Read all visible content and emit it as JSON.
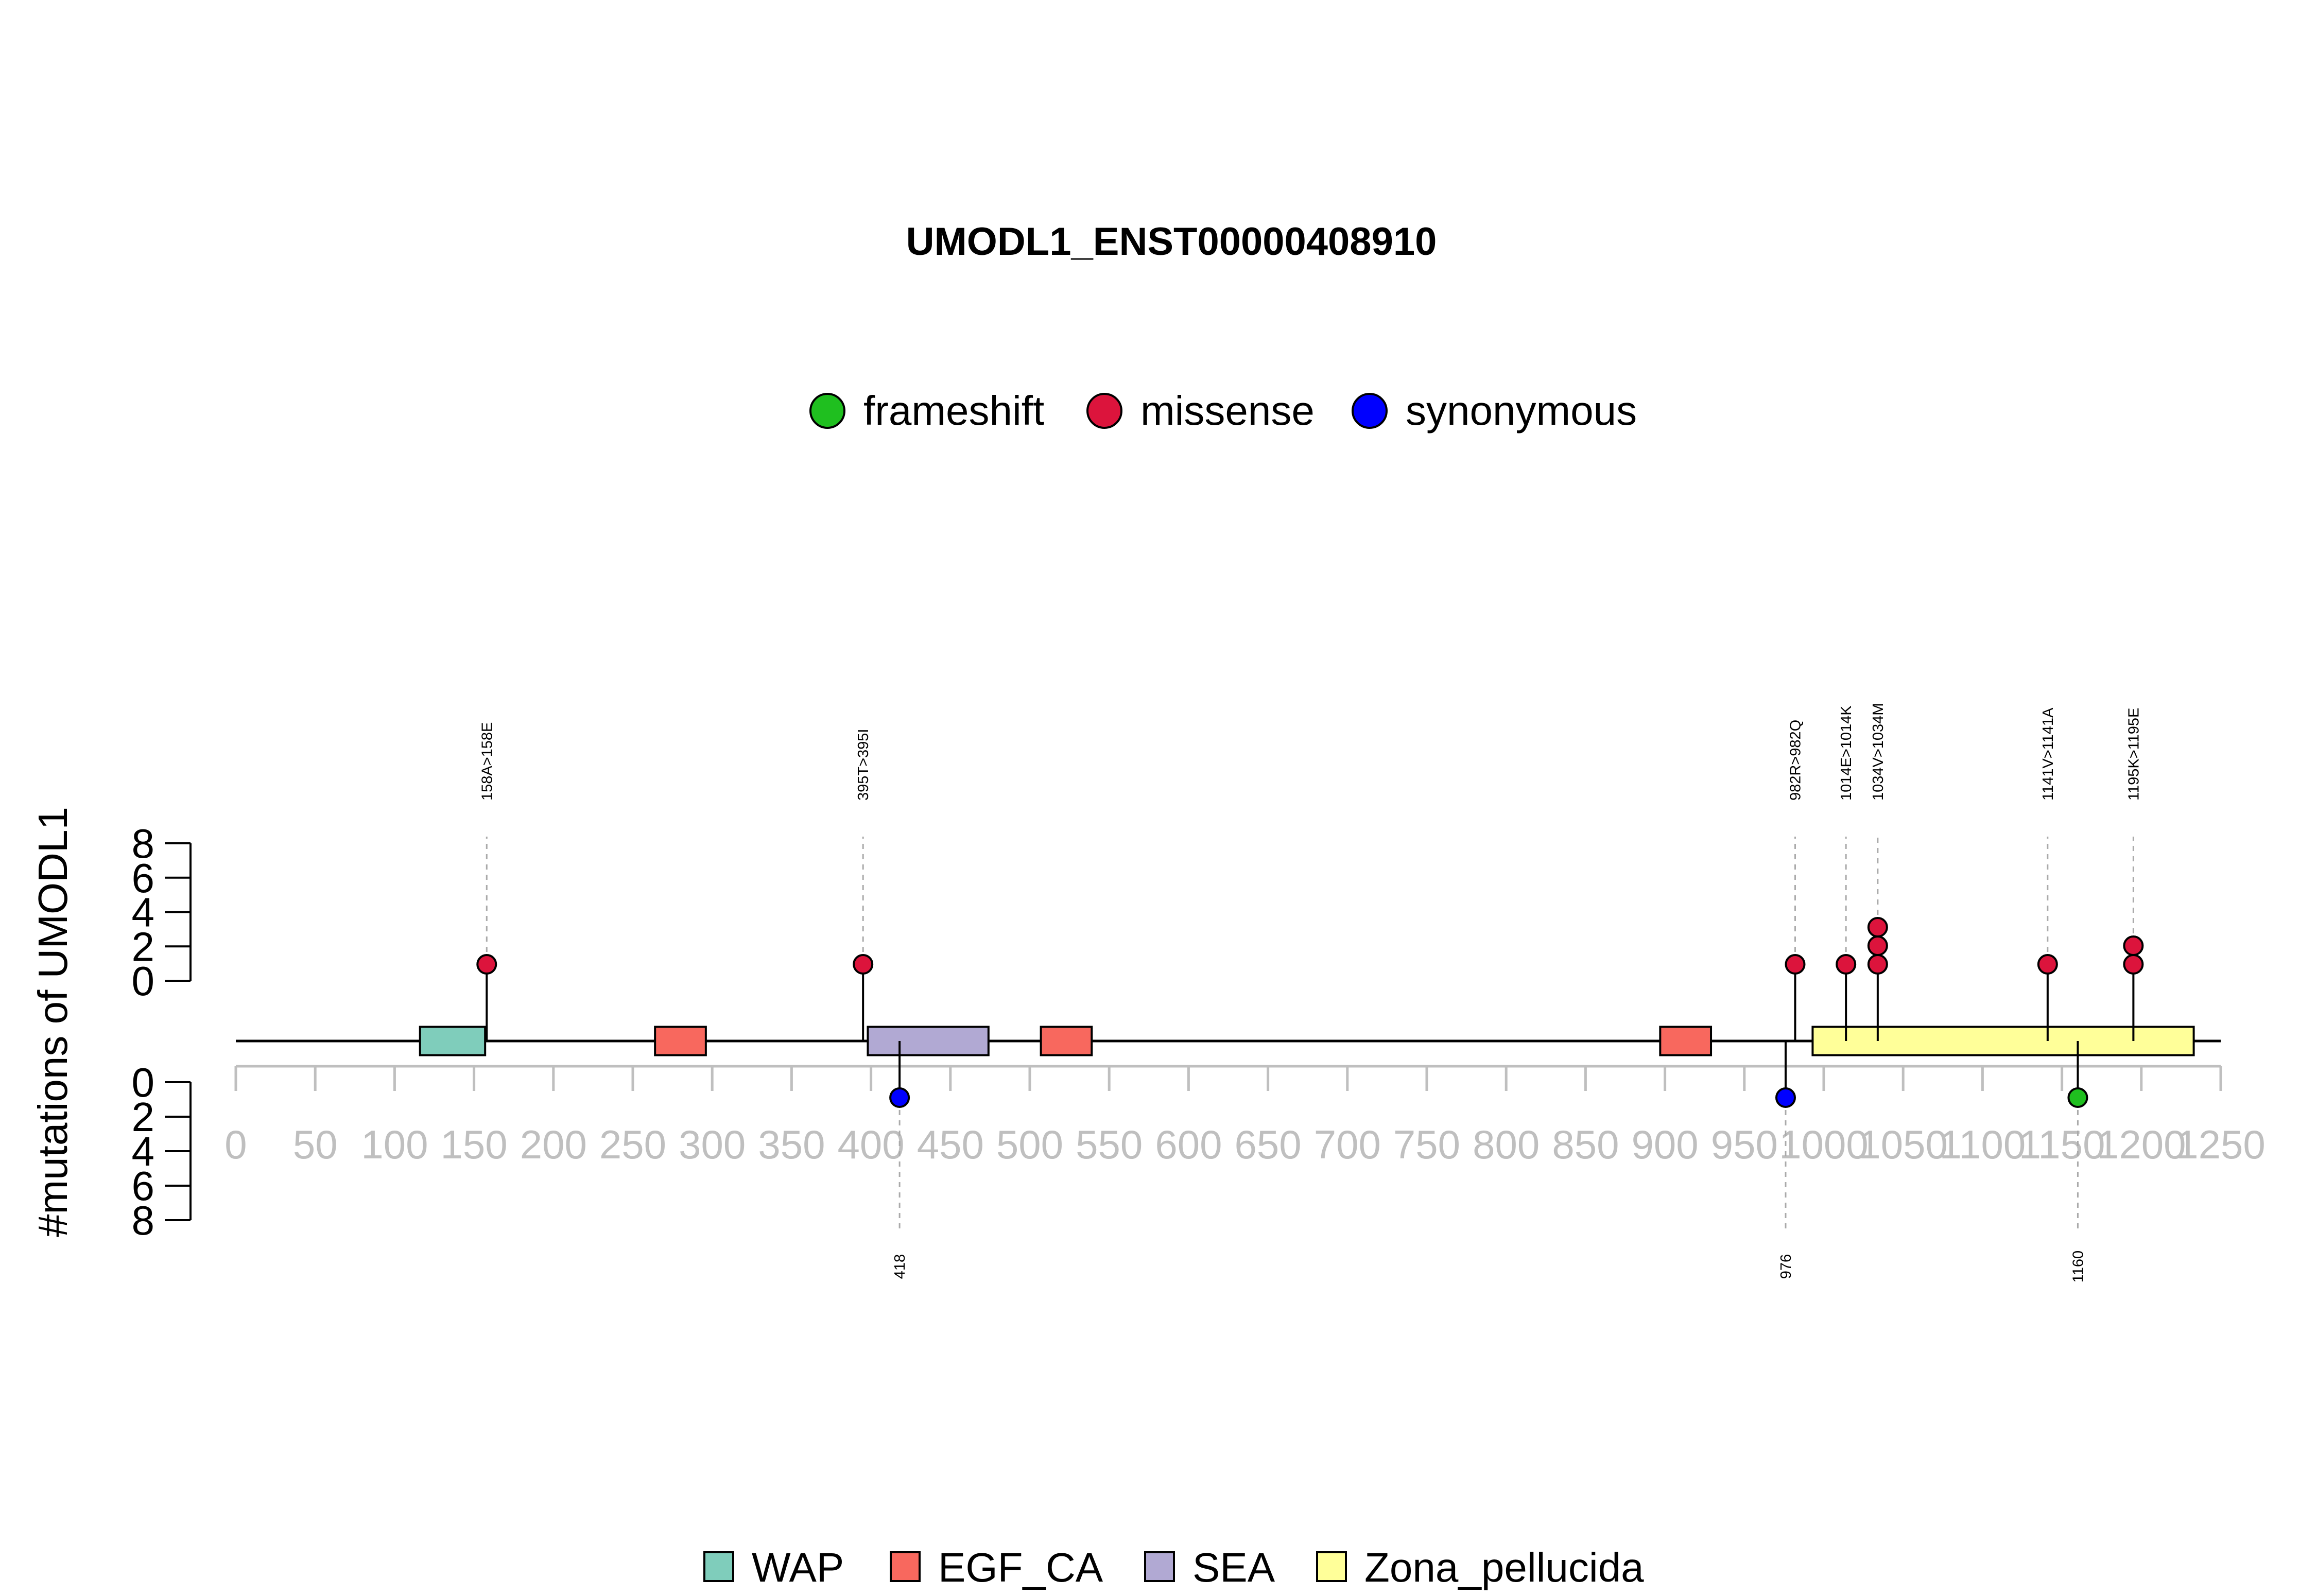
{
  "chart_data": {
    "type": "lollipop",
    "title": "UMODL1_ENST00000408910",
    "ylabel": "#mutations of UMODL1",
    "protein_length": 1250,
    "xlim": [
      0,
      1250
    ],
    "x_ticks": [
      0,
      50,
      100,
      150,
      200,
      250,
      300,
      350,
      400,
      450,
      500,
      550,
      600,
      650,
      700,
      750,
      800,
      850,
      900,
      950,
      1000,
      1050,
      1100,
      1150,
      1200,
      1250
    ],
    "x_tick_labels": [
      "0",
      "50",
      "100",
      "150",
      "200",
      "250",
      "300",
      "350",
      "400",
      "450",
      "500",
      "550",
      "600",
      "650",
      "700",
      "750",
      "800",
      "850",
      "900",
      "950",
      "1000",
      "1050",
      "1100",
      "1150",
      "1200",
      "1250"
    ],
    "y_ticks_top": [
      "0",
      "2",
      "4",
      "6",
      "8"
    ],
    "y_ticks_bottom": [
      "0",
      "2",
      "4",
      "6",
      "8"
    ],
    "ylim": [
      0,
      8
    ],
    "mutation_legend": [
      {
        "name": "frameshift",
        "color": "#1fbf1f"
      },
      {
        "name": "missense",
        "color": "#dc143c"
      },
      {
        "name": "synonymous",
        "color": "#0000ff"
      }
    ],
    "domain_legend": [
      {
        "name": "WAP",
        "color": "#7fcdbb"
      },
      {
        "name": "EGF_CA",
        "color": "#f8685e"
      },
      {
        "name": "SEA",
        "color": "#b1a9d3"
      },
      {
        "name": "Zona_pellucida",
        "color": "#ffff99"
      }
    ],
    "domains": [
      {
        "name": "WAP",
        "start": 116,
        "end": 157
      },
      {
        "name": "EGF_CA",
        "start": 264,
        "end": 296
      },
      {
        "name": "SEA",
        "start": 398,
        "end": 474
      },
      {
        "name": "EGF_CA",
        "start": 507,
        "end": 539
      },
      {
        "name": "EGF_CA",
        "start": 897,
        "end": 929
      },
      {
        "name": "Zona_pellucida",
        "start": 993,
        "end": 1233
      }
    ],
    "mutations_above": [
      {
        "position": 158,
        "count": 1,
        "type": "missense",
        "label": "158A>158E"
      },
      {
        "position": 395,
        "count": 1,
        "type": "missense",
        "label": "395T>395I"
      },
      {
        "position": 982,
        "count": 1,
        "type": "missense",
        "label": "982R>982Q"
      },
      {
        "position": 1014,
        "count": 1,
        "type": "missense",
        "label": "1014E>1014K"
      },
      {
        "position": 1034,
        "count": 3,
        "type": "missense",
        "label": "1034V>1034M"
      },
      {
        "position": 1141,
        "count": 1,
        "type": "missense",
        "label": "1141V>1141A"
      },
      {
        "position": 1195,
        "count": 2,
        "type": "missense",
        "label": "1195K>1195E"
      }
    ],
    "mutations_below": [
      {
        "position": 418,
        "count": 1,
        "type": "synonymous",
        "label": "418"
      },
      {
        "position": 976,
        "count": 1,
        "type": "synonymous",
        "label": "976"
      },
      {
        "position": 1160,
        "count": 1,
        "type": "frameshift",
        "label": "1160"
      }
    ]
  }
}
